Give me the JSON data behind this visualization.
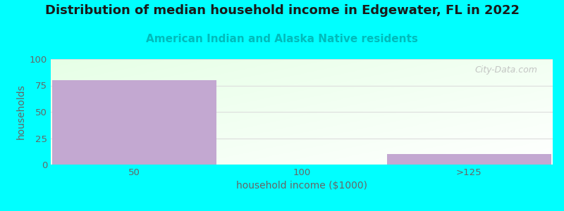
{
  "title": "Distribution of median household income in Edgewater, FL in 2022",
  "subtitle": "American Indian and Alaska Native residents",
  "xlabel": "household income ($1000)",
  "ylabel": "households",
  "background_color": "#00FFFF",
  "bar_color": "#c3a8d1",
  "bar_edge_color": "#c3a8d1",
  "categories": [
    "50",
    "100",
    ">125"
  ],
  "values": [
    80,
    0,
    10
  ],
  "ylim": [
    0,
    100
  ],
  "yticks": [
    0,
    25,
    50,
    75,
    100
  ],
  "title_fontsize": 13,
  "subtitle_fontsize": 11,
  "subtitle_color": "#00BBBB",
  "axis_label_color": "#666666",
  "tick_color": "#666666",
  "watermark": "City-Data.com",
  "watermark_color": "#bbbbbb",
  "grid_color": "#dddddd"
}
